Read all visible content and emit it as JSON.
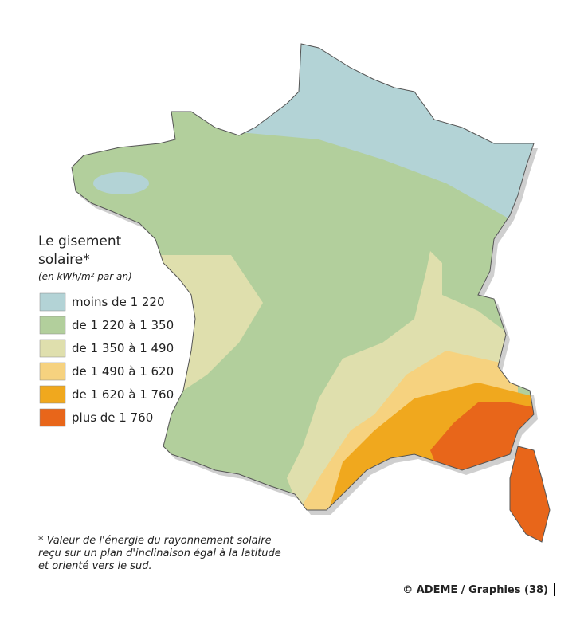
{
  "legend": {
    "title": [
      "Le gisement",
      "solaire*"
    ],
    "subtitle": "(en kWh/m² par an)",
    "items": [
      {
        "label": "moins de 1 220",
        "color": "#b3d3d6"
      },
      {
        "label": "de 1 220 à 1 350",
        "color": "#b2cf9c"
      },
      {
        "label": "de 1 350 à 1 490",
        "color": "#dfdfad"
      },
      {
        "label": "de 1 490 à 1 620",
        "color": "#f6d27f"
      },
      {
        "label": "de 1 620 à 1 760",
        "color": "#f0a81e"
      },
      {
        "label": "plus de 1 760",
        "color": "#e8661a"
      }
    ]
  },
  "footnote": [
    "*  Valeur de l'énergie du rayonnement solaire",
    "reçu sur un plan d'inclinaison égal à la latitude",
    "et orienté vers le sud."
  ],
  "credit": "© ADEME / Graphies (38)"
}
